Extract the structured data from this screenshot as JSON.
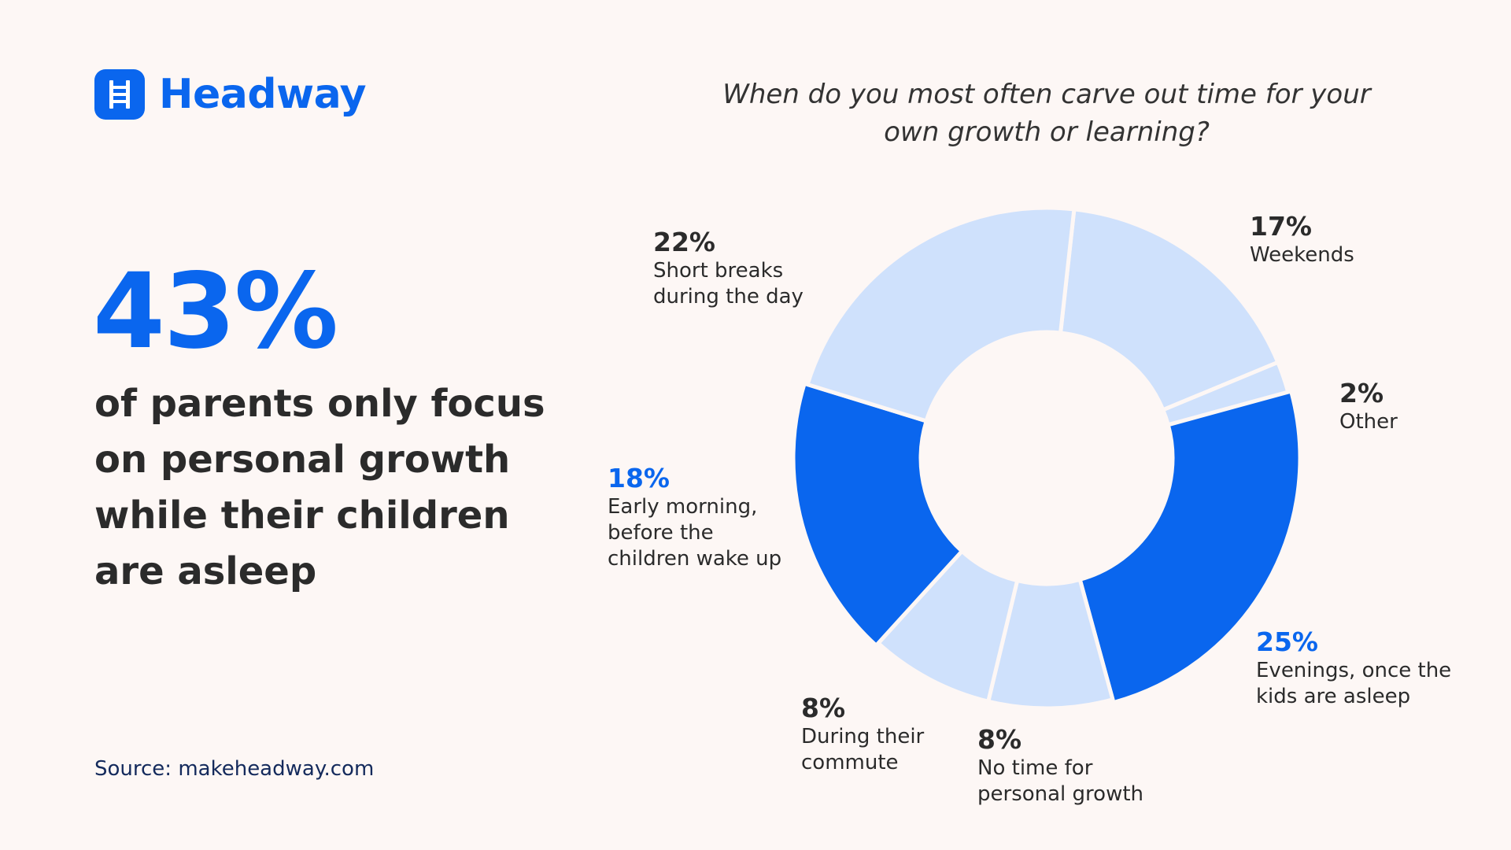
{
  "brand": {
    "name": "Headway",
    "accent": "#0a66ee",
    "icon": "ladder-icon"
  },
  "headline": {
    "value": "43%",
    "text": "of parents only focus on personal growth while their children are asleep"
  },
  "source": "Source: makeheadway.com",
  "chart_data": {
    "type": "pie",
    "variant": "donut",
    "title": "When do you most often carve out time for your own growth or learning?",
    "segments": [
      {
        "label": "Weekends",
        "value": 17,
        "value_label": "17%",
        "color": "#cfe1fc",
        "highlight": false
      },
      {
        "label": "Other",
        "value": 2,
        "value_label": "2%",
        "color": "#cfe1fc",
        "highlight": false
      },
      {
        "label": "Evenings, once the\nkids are asleep",
        "value": 25,
        "value_label": "25%",
        "color": "#0a66ee",
        "highlight": true
      },
      {
        "label": "No time for\npersonal growth",
        "value": 8,
        "value_label": "8%",
        "color": "#cfe1fc",
        "highlight": false
      },
      {
        "label": "During their\ncommute",
        "value": 8,
        "value_label": "8%",
        "color": "#cfe1fc",
        "highlight": false
      },
      {
        "label": "Early morning,\nbefore the\nchildren wake up",
        "value": 18,
        "value_label": "18%",
        "color": "#0a66ee",
        "highlight": true
      },
      {
        "label": "Short breaks\nduring the day",
        "value": 22,
        "value_label": "22%",
        "color": "#cfe1fc",
        "highlight": false
      }
    ]
  }
}
